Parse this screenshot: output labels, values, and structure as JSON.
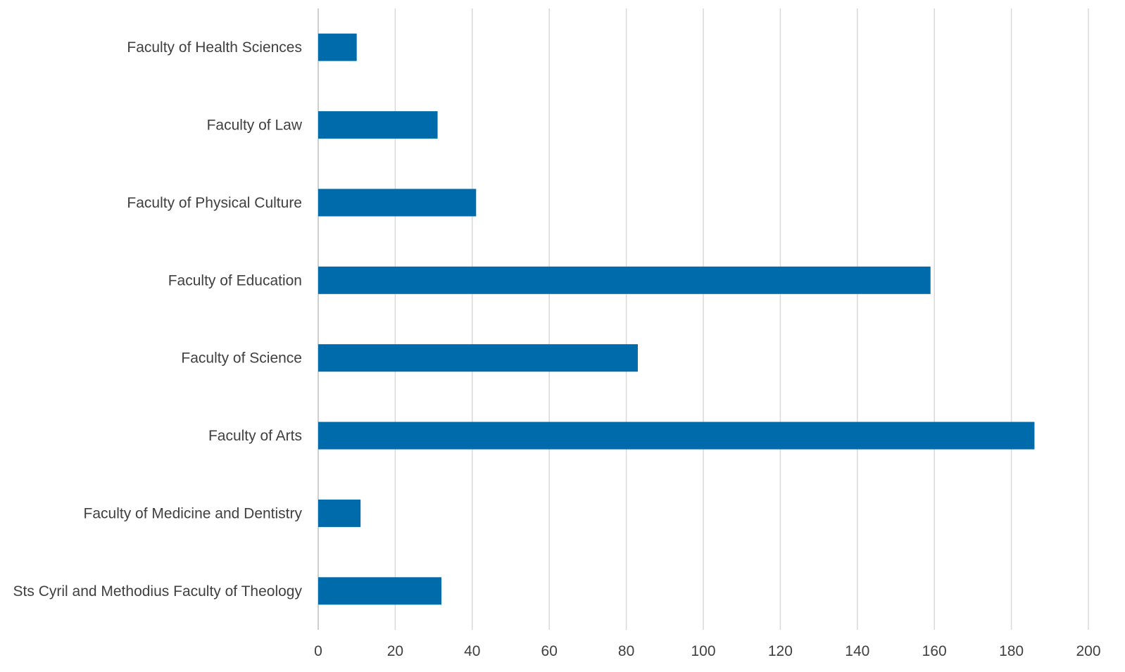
{
  "chart_data": {
    "type": "bar",
    "orientation": "horizontal",
    "categories": [
      "Faculty of Health Sciences",
      "Faculty of Law",
      "Faculty of Physical Culture",
      "Faculty of Education",
      "Faculty of Science",
      "Faculty of Arts",
      "Faculty of Medicine and Dentistry",
      "Sts Cyril and Methodius Faculty of Theology"
    ],
    "values": [
      10,
      31,
      41,
      159,
      83,
      186,
      11,
      32
    ],
    "xlim": [
      0,
      200
    ],
    "xticks": [
      0,
      20,
      40,
      60,
      80,
      100,
      120,
      140,
      160,
      180,
      200
    ],
    "title": "",
    "xlabel": "",
    "ylabel": "",
    "grid": "vertical",
    "legend": "none",
    "bar_color": "#006BAB"
  }
}
